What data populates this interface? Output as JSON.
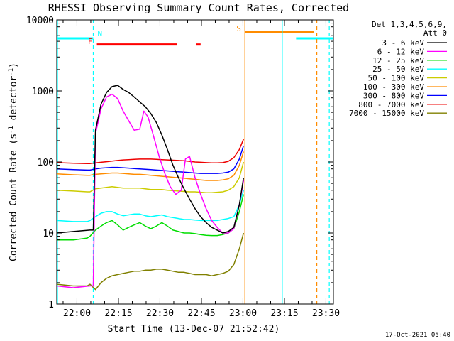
{
  "chart_data": {
    "type": "line",
    "title": "RHESSI Observing Summary Count Rates, Corrected",
    "xlabel": "Start Time (13-Dec-07 21:52:42)",
    "ylabel": "Corrected Count Rate (s",
    "ylabel_sup1": "-1",
    "ylabel_mid": " detector",
    "ylabel_sup2": "-1",
    "ylabel_end": ")",
    "y_scale": "log",
    "ylim": [
      1,
      10000
    ],
    "xlim_minutes": [
      0,
      100
    ],
    "x_ticks": [
      {
        "label": "22:00",
        "minute": 7.3
      },
      {
        "label": "22:15",
        "minute": 22.3
      },
      {
        "label": "22:30",
        "minute": 37.3
      },
      {
        "label": "22:45",
        "minute": 52.3
      },
      {
        "label": "23:00",
        "minute": 67.3
      },
      {
        "label": "23:15",
        "minute": 82.3
      },
      {
        "label": "23:30",
        "minute": 97.3
      }
    ],
    "y_ticks": [
      {
        "label": "1",
        "value": 1
      },
      {
        "label": "10",
        "value": 10
      },
      {
        "label": "100",
        "value": 100
      },
      {
        "label": "1000",
        "value": 1000
      },
      {
        "label": "10000",
        "value": 10000
      }
    ],
    "legend_header_line1": "Det 1,3,4,5,6,9,",
    "legend_header_line2": "Att 0",
    "legend_placement": "right",
    "series": [
      {
        "name": "3 - 6 keV",
        "color": "#000000",
        "x": [
          0,
          6,
          12,
          13.2,
          14,
          16,
          18,
          20,
          22,
          24,
          26,
          28,
          30,
          32,
          34,
          36,
          38,
          40,
          42,
          44,
          46,
          48,
          50,
          52,
          54,
          56,
          58,
          60,
          62,
          64,
          66,
          67.5
        ],
        "values": [
          10,
          10.5,
          11,
          11,
          280,
          650,
          950,
          1150,
          1200,
          1050,
          950,
          820,
          700,
          600,
          480,
          360,
          240,
          150,
          90,
          60,
          42,
          30,
          22,
          17,
          14,
          12,
          11,
          10,
          10.5,
          12,
          25,
          60
        ]
      },
      {
        "name": "6 - 12 keV",
        "color": "#ff00ff",
        "x": [
          0,
          6,
          12,
          13.2,
          14,
          16,
          18,
          20,
          22,
          24,
          26,
          28,
          30,
          31.5,
          33,
          35,
          37,
          39,
          41,
          43,
          45,
          46.5,
          48,
          50,
          52,
          54,
          56,
          58,
          60,
          62,
          64,
          66,
          67.5
        ],
        "values": [
          1.8,
          1.7,
          1.8,
          1.8,
          250,
          560,
          820,
          900,
          780,
          520,
          380,
          280,
          290,
          520,
          430,
          230,
          120,
          70,
          45,
          35,
          40,
          110,
          120,
          60,
          35,
          22,
          15,
          12,
          10,
          10,
          11.5,
          25,
          55
        ]
      },
      {
        "name": "12 - 25 keV",
        "color": "#00dd00",
        "x": [
          0,
          6,
          11,
          12,
          14,
          16,
          18,
          20,
          22,
          24,
          26,
          28,
          30,
          32,
          34,
          36,
          38,
          40,
          42,
          44,
          46,
          48,
          50,
          52,
          54,
          56,
          58,
          60,
          62,
          64,
          66,
          67.5
        ],
        "values": [
          8,
          8,
          8.5,
          9,
          11,
          12.5,
          14,
          15,
          13,
          11,
          12,
          13,
          14,
          12.5,
          11.5,
          12.5,
          14,
          12.5,
          11,
          10.5,
          10,
          10,
          9.8,
          9.5,
          9.3,
          9.2,
          9.2,
          9.5,
          10,
          11.5,
          20,
          35
        ]
      },
      {
        "name": "25 - 50 keV",
        "color": "#00ffff",
        "x": [
          0,
          6,
          11,
          12,
          14,
          16,
          18,
          20,
          22,
          24,
          26,
          28,
          30,
          32,
          34,
          36,
          38,
          40,
          42,
          44,
          46,
          48,
          50,
          52,
          54,
          56,
          58,
          60,
          62,
          64,
          66,
          67.5
        ],
        "values": [
          15,
          14.5,
          14.5,
          15,
          17,
          19,
          20,
          20,
          18.5,
          17.5,
          18,
          18.5,
          18.5,
          17.5,
          17,
          17.5,
          18,
          17,
          16.5,
          16,
          15.5,
          15.5,
          15.2,
          15,
          15,
          15,
          15,
          15.5,
          16,
          17,
          25,
          40
        ]
      },
      {
        "name": "50 - 100 keV",
        "color": "#cccc00",
        "x": [
          0,
          6,
          11,
          12,
          14,
          16,
          18,
          20,
          22,
          24,
          26,
          28,
          30,
          32,
          34,
          36,
          38,
          40,
          42,
          44,
          46,
          48,
          50,
          52,
          54,
          56,
          58,
          60,
          62,
          64,
          66,
          67.5
        ],
        "values": [
          40,
          39,
          38,
          38,
          42,
          43,
          44,
          45,
          44,
          43,
          43,
          43,
          43,
          42,
          41,
          41,
          41,
          40,
          39.5,
          39,
          38.5,
          38,
          38,
          37.5,
          37,
          37,
          37.5,
          38,
          40,
          45,
          60,
          100
        ]
      },
      {
        "name": "100 - 300 keV",
        "color": "#ff8c00",
        "x": [
          0,
          6,
          11,
          12,
          14,
          16,
          18,
          20,
          22,
          24,
          26,
          28,
          30,
          32,
          34,
          36,
          38,
          40,
          42,
          44,
          46,
          48,
          50,
          52,
          54,
          56,
          58,
          60,
          62,
          64,
          66,
          67.5
        ],
        "values": [
          68,
          66,
          65,
          65,
          67,
          68,
          69,
          70,
          70,
          69,
          68,
          67,
          67,
          66,
          65,
          64,
          63,
          62,
          61,
          60,
          59,
          58,
          57,
          56,
          55,
          55,
          55,
          56,
          58,
          65,
          90,
          140
        ]
      },
      {
        "name": "300 - 800 keV",
        "color": "#0000ff",
        "x": [
          0,
          6,
          11,
          12,
          14,
          16,
          18,
          20,
          22,
          24,
          26,
          28,
          30,
          32,
          34,
          36,
          38,
          40,
          42,
          44,
          46,
          48,
          50,
          52,
          54,
          56,
          58,
          60,
          62,
          64,
          66,
          67.5
        ],
        "values": [
          80,
          78,
          77,
          77,
          80,
          82,
          83,
          84,
          84,
          83,
          82,
          81,
          80,
          79,
          78,
          77,
          76,
          75,
          74,
          73,
          72,
          71,
          70,
          69,
          69,
          69,
          69,
          70,
          72,
          80,
          110,
          170
        ]
      },
      {
        "name": "800 - 7000 keV",
        "color": "#ee0000",
        "x": [
          0,
          6,
          11,
          12,
          14,
          16,
          18,
          20,
          22,
          24,
          26,
          28,
          30,
          32,
          34,
          36,
          38,
          40,
          42,
          44,
          46,
          48,
          50,
          52,
          54,
          56,
          58,
          60,
          62,
          64,
          66,
          67.5
        ],
        "values": [
          98,
          96,
          95,
          95,
          97,
          99,
          101,
          103,
          105,
          107,
          108,
          109,
          110,
          110,
          110,
          109,
          108,
          107,
          106,
          105,
          104,
          102,
          100,
          99,
          98,
          97,
          97,
          98,
          102,
          115,
          150,
          210
        ]
      },
      {
        "name": "7000 - 15000 keV",
        "color": "#808000",
        "x": [
          0,
          6,
          11,
          12,
          14,
          16,
          18,
          20,
          22,
          24,
          26,
          28,
          30,
          32,
          34,
          36,
          38,
          40,
          42,
          44,
          46,
          48,
          50,
          52,
          54,
          56,
          58,
          60,
          62,
          64,
          66,
          67.5
        ],
        "values": [
          1.9,
          1.8,
          1.8,
          1.9,
          1.6,
          2.0,
          2.3,
          2.5,
          2.6,
          2.7,
          2.8,
          2.9,
          2.9,
          3.0,
          3.0,
          3.1,
          3.1,
          3.0,
          2.9,
          2.8,
          2.8,
          2.7,
          2.6,
          2.6,
          2.6,
          2.5,
          2.6,
          2.7,
          2.9,
          3.6,
          6,
          10
        ]
      }
    ],
    "annotations": [
      {
        "label": "N",
        "color": "#00ffff",
        "x_minutes": 13.2
      },
      {
        "label": "F",
        "color": "#ff0000",
        "x_minutes": 13.8
      },
      {
        "label": "S",
        "color": "#ff8c00",
        "x_minutes": 68
      }
    ],
    "flag_bars": [
      {
        "color": "#00ffff",
        "y": 5500,
        "segments": [
          [
            0,
            13.2
          ],
          [
            86.5,
            100
          ]
        ]
      },
      {
        "color": "#ff0000",
        "y": 4500,
        "segments": [
          [
            14.5,
            43.5
          ],
          [
            50.5,
            52
          ]
        ]
      },
      {
        "color": "#ff8c00",
        "y": 6800,
        "segments": [
          [
            68,
            93
          ]
        ]
      }
    ],
    "vertical_markers": [
      {
        "color": "#00ffff",
        "x_minutes": 0,
        "style": "solid"
      },
      {
        "color": "#00ffff",
        "x_minutes": 13.2,
        "style": "dashed"
      },
      {
        "color": "#ff8c00",
        "x_minutes": 68,
        "style": "solid"
      },
      {
        "color": "#00ffff",
        "x_minutes": 81.5,
        "style": "solid"
      },
      {
        "color": "#ff8c00",
        "x_minutes": 94,
        "style": "dashed"
      },
      {
        "color": "#00ffff",
        "x_minutes": 98.5,
        "style": "dashed"
      }
    ]
  },
  "footer_timestamp": "17-Oct-2021 05:40"
}
